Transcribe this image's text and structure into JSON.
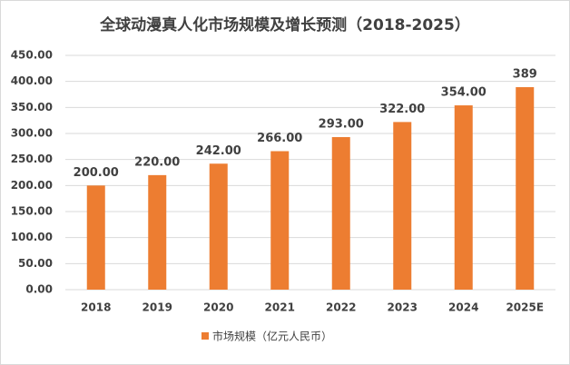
{
  "chart_data": {
    "type": "bar",
    "title": "全球动漫真人化市场规模及增长预测（2018-2025）",
    "categories": [
      "2018",
      "2019",
      "2020",
      "2021",
      "2022",
      "2023",
      "2024",
      "2025E"
    ],
    "series": [
      {
        "name": "市场规模（亿元人民币）",
        "color": "#ED7D31",
        "values": [
          200,
          220,
          242,
          266,
          293,
          322,
          354,
          389
        ],
        "value_labels": [
          "200.00",
          "220.00",
          "242.00",
          "266.00",
          "293.00",
          "322.00",
          "354.00",
          "389"
        ]
      }
    ],
    "ylim": [
      0,
      450
    ],
    "yticks": [
      {
        "value": 0,
        "label": "0.00"
      },
      {
        "value": 50,
        "label": "50.00"
      },
      {
        "value": 100,
        "label": "100.00"
      },
      {
        "value": 150,
        "label": "150.00"
      },
      {
        "value": 200,
        "label": "200.00"
      },
      {
        "value": 250,
        "label": "250.00"
      },
      {
        "value": 300,
        "label": "300.00"
      },
      {
        "value": 350,
        "label": "350.00"
      },
      {
        "value": 400,
        "label": "400.00"
      },
      {
        "value": 450,
        "label": "450.00"
      }
    ],
    "grid": true,
    "legend": "bottom"
  }
}
